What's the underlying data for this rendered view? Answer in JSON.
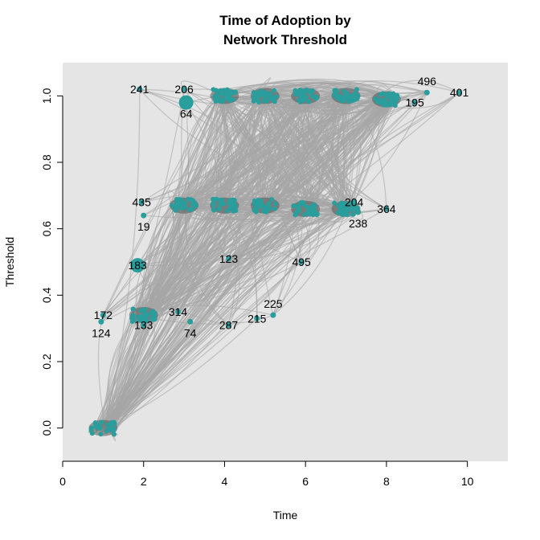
{
  "chart_data": {
    "type": "scatter",
    "title": [
      "Time of Adoption by",
      "Network Threshold"
    ],
    "xlabel": "Time",
    "ylabel": "Threshold",
    "xlim": [
      0,
      11
    ],
    "ylim": [
      -0.1,
      1.1
    ],
    "xticks": [
      0,
      2,
      4,
      6,
      8,
      10
    ],
    "yticks": [
      0.0,
      0.2,
      0.4,
      0.6,
      0.8,
      1.0
    ],
    "ytick_labels": [
      "0.0",
      "0.2",
      "0.4",
      "0.6",
      "0.8",
      "1.0"
    ],
    "grid": false,
    "panel_color": "#e5e5e5",
    "edge_color": "#a6a6a6",
    "node_color": "#2a9d9d",
    "labeled_nodes": [
      {
        "label": "241",
        "time": 1.9,
        "threshold": 1.02
      },
      {
        "label": "206",
        "time": 3.0,
        "threshold": 1.02
      },
      {
        "label": "64",
        "time": 3.05,
        "threshold": 0.98
      },
      {
        "label": "195",
        "time": 8.7,
        "threshold": 0.98
      },
      {
        "label": "496",
        "time": 9.0,
        "threshold": 1.01
      },
      {
        "label": "401",
        "time": 9.8,
        "threshold": 1.01
      },
      {
        "label": "435",
        "time": 1.95,
        "threshold": 0.68
      },
      {
        "label": "19",
        "time": 2.0,
        "threshold": 0.64
      },
      {
        "label": "204",
        "time": 7.2,
        "threshold": 0.68
      },
      {
        "label": "238",
        "time": 7.3,
        "threshold": 0.65
      },
      {
        "label": "364",
        "time": 8.0,
        "threshold": 0.66
      },
      {
        "label": "183",
        "time": 1.85,
        "threshold": 0.49
      },
      {
        "label": "123",
        "time": 4.1,
        "threshold": 0.51
      },
      {
        "label": "495",
        "time": 5.9,
        "threshold": 0.5
      },
      {
        "label": "172",
        "time": 1.0,
        "threshold": 0.34
      },
      {
        "label": "124",
        "time": 0.95,
        "threshold": 0.32
      },
      {
        "label": "314",
        "time": 2.85,
        "threshold": 0.35
      },
      {
        "label": "74",
        "time": 3.15,
        "threshold": 0.32
      },
      {
        "label": "287",
        "time": 4.1,
        "threshold": 0.31
      },
      {
        "label": "215",
        "time": 4.8,
        "threshold": 0.33
      },
      {
        "label": "225",
        "time": 5.2,
        "threshold": 0.34
      },
      {
        "label": "133",
        "time": 2.0,
        "threshold": 0.31
      }
    ],
    "dense_clusters": [
      {
        "time": 1.0,
        "threshold": 0.0
      },
      {
        "time": 3.0,
        "threshold": 0.67
      },
      {
        "time": 4.0,
        "threshold": 1.0
      },
      {
        "time": 5.0,
        "threshold": 1.0
      },
      {
        "time": 6.0,
        "threshold": 1.0
      },
      {
        "time": 7.0,
        "threshold": 1.0
      },
      {
        "time": 8.0,
        "threshold": 0.99
      },
      {
        "time": 4.0,
        "threshold": 0.67
      },
      {
        "time": 5.0,
        "threshold": 0.67
      },
      {
        "time": 6.0,
        "threshold": 0.66
      },
      {
        "time": 7.0,
        "threshold": 0.66
      },
      {
        "time": 2.0,
        "threshold": 0.34
      }
    ]
  }
}
